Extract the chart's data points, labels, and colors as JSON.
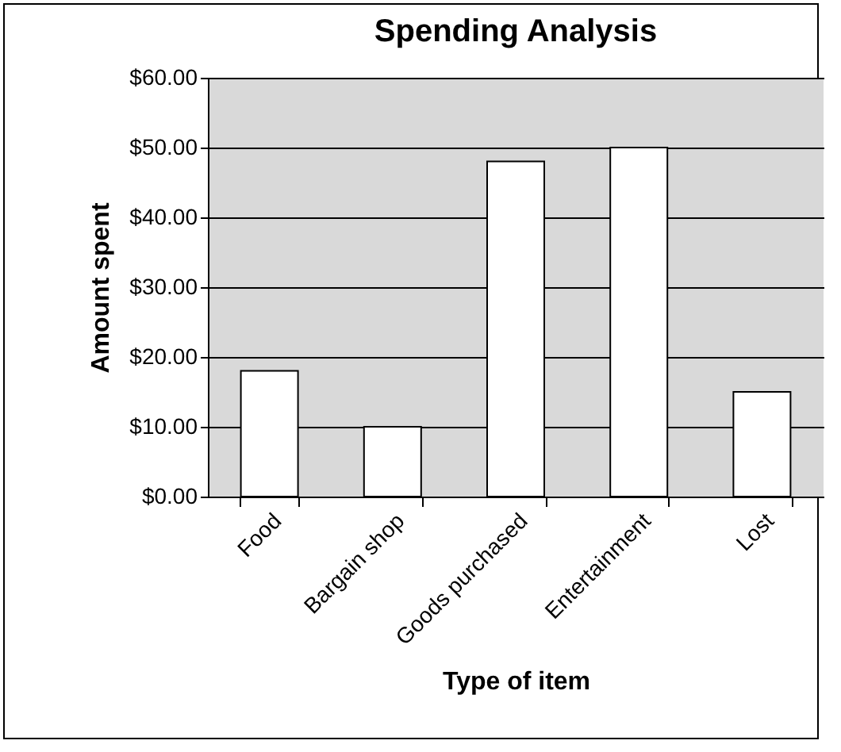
{
  "chart_data": {
    "type": "bar",
    "title": "Spending Analysis",
    "xlabel": "Type of item",
    "ylabel": "Amount spent",
    "categories": [
      "Food",
      "Bargain shop",
      "Goods purchased",
      "Entertainment",
      "Lost"
    ],
    "values": [
      18,
      10,
      48,
      50,
      15
    ],
    "color": "#ffffff",
    "ylim": [
      0,
      60
    ],
    "yticks": [
      {
        "value": 0,
        "label": "$0.00"
      },
      {
        "value": 10,
        "label": "$10.00"
      },
      {
        "value": 20,
        "label": "$20.00"
      },
      {
        "value": 30,
        "label": "$30.00"
      },
      {
        "value": 40,
        "label": "$40.00"
      },
      {
        "value": 50,
        "label": "$50.00"
      },
      {
        "value": 60,
        "label": "$60.00"
      }
    ],
    "grid": "y"
  }
}
